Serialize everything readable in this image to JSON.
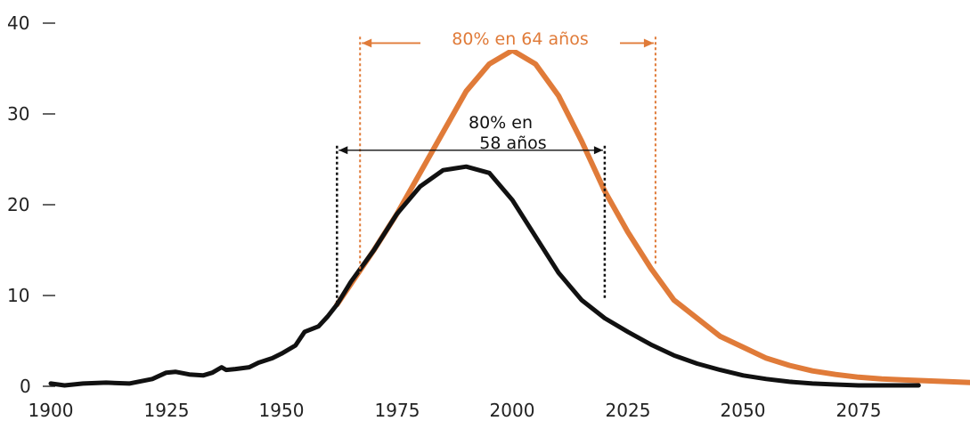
{
  "chart_data": {
    "type": "line",
    "title": "",
    "xlabel": "",
    "ylabel": "",
    "xlim": [
      1900,
      2100
    ],
    "ylim": [
      0,
      40
    ],
    "x_ticks": [
      1900,
      1925,
      1950,
      1975,
      2000,
      2025,
      2050,
      2075
    ],
    "y_ticks": [
      0,
      10,
      20,
      30,
      40
    ],
    "grid": false,
    "legend": "none",
    "series": [
      {
        "color": "#e07b39",
        "x": [
          1962,
          1966,
          1970,
          1975,
          1980,
          1985,
          1990,
          1995,
          2000,
          2005,
          2010,
          2015,
          2020,
          2025,
          2030,
          2035,
          2040,
          2045,
          2050,
          2055,
          2060,
          2065,
          2070,
          2075,
          2080,
          2085,
          2090,
          2095,
          2100
        ],
        "values": [
          9,
          12,
          15,
          19,
          23.5,
          28,
          32.5,
          35.5,
          37,
          35.5,
          32,
          27,
          21.5,
          17,
          13,
          9.5,
          7.5,
          5.5,
          4.3,
          3.1,
          2.3,
          1.7,
          1.3,
          1.0,
          0.8,
          0.7,
          0.6,
          0.5,
          0.4
        ]
      },
      {
        "color": "#111111",
        "x": [
          1900,
          1903,
          1907,
          1912,
          1917,
          1922,
          1925,
          1927,
          1930,
          1933,
          1935,
          1937,
          1938,
          1940,
          1943,
          1945,
          1948,
          1950,
          1953,
          1955,
          1958,
          1960,
          1962,
          1965,
          1970,
          1975,
          1980,
          1985,
          1990,
          1995,
          2000,
          2005,
          2010,
          2015,
          2020,
          2025,
          2030,
          2035,
          2040,
          2045,
          2050,
          2055,
          2060,
          2065,
          2070,
          2075,
          2080,
          2088
        ],
        "values": [
          0.3,
          0.1,
          0.3,
          0.4,
          0.3,
          0.8,
          1.5,
          1.6,
          1.3,
          1.2,
          1.5,
          2.1,
          1.8,
          1.9,
          2.1,
          2.6,
          3.1,
          3.6,
          4.5,
          6.0,
          6.6,
          7.7,
          9,
          11.5,
          15,
          19,
          22,
          23.8,
          24.2,
          23.5,
          20.5,
          16.5,
          12.5,
          9.5,
          7.5,
          6.0,
          4.6,
          3.4,
          2.5,
          1.8,
          1.2,
          0.8,
          0.5,
          0.3,
          0.2,
          0.1,
          0.1,
          0.1
        ]
      }
    ],
    "annotations": [
      {
        "text": "80% en 64 años",
        "color": "#e07b39",
        "x_start": 1967,
        "x_end": 2031,
        "y": 37.8,
        "v_top": 38.5,
        "v_left_bottom": 12.5,
        "v_right_bottom": 13.3
      },
      {
        "text_line1": "80% en",
        "text_line2": "58 años",
        "color": "#111111",
        "x_start": 1962,
        "x_end": 2020,
        "y": 26.0,
        "v_top": 26.5,
        "v_left_bottom": 9.3,
        "v_right_bottom": 9.5
      }
    ]
  }
}
